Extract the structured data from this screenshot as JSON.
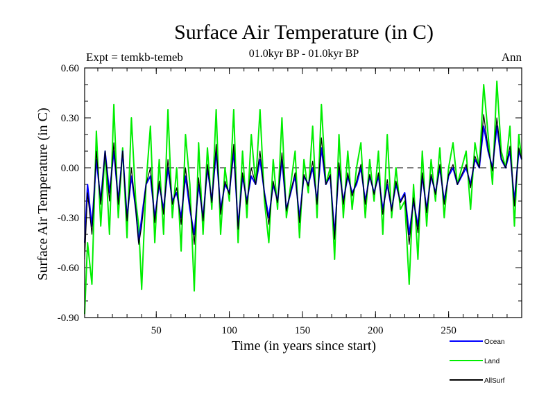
{
  "chart_data": {
    "type": "line",
    "title": "Surface Air Temperature (in C)",
    "subtitle": "01.0kyr BP - 01.0kyr BP",
    "left_annotation": "Expt = temkb-temeb",
    "right_annotation": "Ann",
    "xlabel": "Time (in years since start)",
    "ylabel": "Surface Air Temperature (in C)",
    "xlim": [
      1,
      300
    ],
    "ylim": [
      -0.9,
      0.6
    ],
    "x_ticks": [
      50,
      100,
      150,
      200,
      250
    ],
    "y_ticks": [
      0.6,
      0.3,
      0.0,
      -0.3,
      -0.6,
      -0.9
    ],
    "y_tick_labels": [
      "0.60",
      "0.30",
      "0.00",
      "-0.30",
      "-0.60",
      "-0.90"
    ],
    "reference_line": 0.0,
    "colors": {
      "ocean": "#0000ff",
      "land": "#00ee00",
      "allsurf": "#000000",
      "axis": "#000000"
    },
    "series": [
      {
        "name": "Land",
        "color": "#00ee00",
        "x": [
          1,
          3,
          6,
          9,
          12,
          15,
          18,
          21,
          24,
          27,
          30,
          33,
          36,
          38,
          40,
          43,
          46,
          49,
          52,
          55,
          58,
          61,
          64,
          67,
          70,
          73,
          76,
          79,
          82,
          85,
          88,
          91,
          94,
          97,
          100,
          103,
          106,
          109,
          112,
          115,
          118,
          121,
          124,
          127,
          130,
          133,
          136,
          139,
          142,
          145,
          148,
          151,
          154,
          157,
          160,
          163,
          166,
          169,
          172,
          175,
          178,
          181,
          184,
          187,
          190,
          193,
          196,
          199,
          202,
          205,
          208,
          211,
          214,
          217,
          220,
          223,
          226,
          229,
          232,
          235,
          238,
          241,
          244,
          247,
          250,
          253,
          256,
          259,
          262,
          265,
          268,
          271,
          274,
          277,
          280,
          283,
          286,
          289,
          292,
          295,
          298,
          300
        ],
        "values": [
          -0.88,
          -0.45,
          -0.7,
          0.22,
          -0.35,
          0.1,
          -0.4,
          0.38,
          -0.3,
          0.12,
          -0.42,
          0.3,
          -0.2,
          -0.35,
          -0.73,
          -0.1,
          0.25,
          -0.45,
          0.05,
          -0.4,
          0.35,
          -0.3,
          0.0,
          -0.5,
          0.2,
          -0.1,
          -0.74,
          0.15,
          -0.4,
          0.12,
          -0.25,
          0.35,
          -0.4,
          0.0,
          -0.2,
          0.35,
          -0.45,
          0.1,
          -0.3,
          0.2,
          -0.1,
          0.35,
          -0.2,
          -0.45,
          0.05,
          -0.25,
          0.3,
          -0.3,
          -0.1,
          0.1,
          -0.42,
          0.05,
          -0.15,
          0.25,
          -0.3,
          0.38,
          -0.1,
          0.0,
          -0.55,
          0.2,
          -0.3,
          0.1,
          -0.25,
          0.0,
          0.15,
          -0.3,
          0.05,
          -0.2,
          0.1,
          -0.4,
          0.2,
          -0.3,
          0.0,
          -0.25,
          -0.2,
          -0.7,
          -0.1,
          -0.55,
          0.1,
          -0.35,
          0.05,
          -0.2,
          0.12,
          -0.3,
          0.0,
          0.15,
          -0.1,
          0.0,
          0.1,
          -0.25,
          0.15,
          0.0,
          0.5,
          0.2,
          -0.1,
          0.52,
          0.1,
          0.0,
          0.25,
          -0.35,
          0.2,
          0.05
        ]
      },
      {
        "name": "Ocean",
        "color": "#0000ff",
        "x": [
          1,
          3,
          6,
          9,
          12,
          15,
          18,
          21,
          24,
          27,
          30,
          33,
          36,
          38,
          40,
          43,
          46,
          49,
          52,
          55,
          58,
          61,
          64,
          67,
          70,
          73,
          76,
          79,
          82,
          85,
          88,
          91,
          94,
          97,
          100,
          103,
          106,
          109,
          112,
          115,
          118,
          121,
          124,
          127,
          130,
          133,
          136,
          139,
          142,
          145,
          148,
          151,
          154,
          157,
          160,
          163,
          166,
          169,
          172,
          175,
          178,
          181,
          184,
          187,
          190,
          193,
          196,
          199,
          202,
          205,
          208,
          211,
          214,
          217,
          220,
          223,
          226,
          229,
          232,
          235,
          238,
          241,
          244,
          247,
          250,
          253,
          256,
          259,
          262,
          265,
          268,
          271,
          274,
          277,
          280,
          283,
          286,
          289,
          292,
          295,
          298,
          300
        ],
        "values": [
          -0.45,
          -0.1,
          -0.35,
          0.05,
          -0.2,
          0.1,
          -0.15,
          0.1,
          -0.2,
          0.1,
          -0.3,
          -0.05,
          -0.25,
          -0.45,
          -0.3,
          -0.1,
          -0.05,
          -0.3,
          -0.1,
          -0.25,
          0.0,
          -0.2,
          -0.15,
          -0.3,
          -0.05,
          -0.25,
          -0.4,
          -0.1,
          -0.3,
          0.0,
          -0.2,
          0.1,
          -0.25,
          -0.1,
          -0.15,
          0.1,
          -0.35,
          -0.05,
          -0.2,
          -0.05,
          -0.1,
          0.05,
          -0.15,
          -0.3,
          -0.1,
          -0.2,
          0.05,
          -0.25,
          -0.15,
          -0.05,
          -0.3,
          -0.05,
          -0.1,
          0.0,
          -0.2,
          0.12,
          -0.1,
          -0.05,
          -0.4,
          0.0,
          -0.2,
          -0.05,
          -0.15,
          -0.1,
          0.0,
          -0.2,
          -0.05,
          -0.15,
          -0.05,
          -0.25,
          -0.1,
          -0.25,
          -0.1,
          -0.2,
          -0.15,
          -0.4,
          -0.2,
          -0.35,
          -0.05,
          -0.25,
          -0.05,
          -0.15,
          0.0,
          -0.2,
          -0.05,
          0.0,
          -0.1,
          -0.05,
          0.0,
          -0.1,
          0.05,
          0.0,
          0.25,
          0.1,
          0.0,
          0.25,
          0.05,
          0.0,
          0.1,
          -0.2,
          0.1,
          0.05
        ]
      },
      {
        "name": "AllSurf",
        "color": "#000000",
        "x": [
          1,
          3,
          6,
          9,
          12,
          15,
          18,
          21,
          24,
          27,
          30,
          33,
          36,
          38,
          40,
          43,
          46,
          49,
          52,
          55,
          58,
          61,
          64,
          67,
          70,
          73,
          76,
          79,
          82,
          85,
          88,
          91,
          94,
          97,
          100,
          103,
          106,
          109,
          112,
          115,
          118,
          121,
          124,
          127,
          130,
          133,
          136,
          139,
          142,
          145,
          148,
          151,
          154,
          157,
          160,
          163,
          166,
          169,
          172,
          175,
          178,
          181,
          184,
          187,
          190,
          193,
          196,
          199,
          202,
          205,
          208,
          211,
          214,
          217,
          220,
          223,
          226,
          229,
          232,
          235,
          238,
          241,
          244,
          247,
          250,
          253,
          256,
          259,
          262,
          265,
          268,
          271,
          274,
          277,
          280,
          283,
          286,
          289,
          292,
          295,
          298,
          300
        ],
        "values": [
          -0.55,
          -0.15,
          -0.4,
          0.1,
          -0.22,
          0.1,
          -0.2,
          0.15,
          -0.22,
          0.1,
          -0.32,
          0.0,
          -0.25,
          -0.46,
          -0.35,
          -0.1,
          0.0,
          -0.33,
          -0.08,
          -0.28,
          0.05,
          -0.22,
          -0.12,
          -0.34,
          0.0,
          -0.22,
          -0.46,
          -0.06,
          -0.32,
          0.02,
          -0.21,
          0.14,
          -0.28,
          -0.08,
          -0.16,
          0.14,
          -0.37,
          -0.03,
          -0.22,
          0.0,
          -0.1,
          0.1,
          -0.16,
          -0.34,
          -0.08,
          -0.21,
          0.09,
          -0.26,
          -0.14,
          -0.03,
          -0.33,
          -0.04,
          -0.11,
          0.04,
          -0.22,
          0.18,
          -0.1,
          -0.04,
          -0.43,
          0.03,
          -0.22,
          -0.03,
          -0.17,
          -0.08,
          0.02,
          -0.22,
          -0.04,
          -0.16,
          -0.03,
          -0.28,
          -0.07,
          -0.26,
          -0.08,
          -0.21,
          -0.16,
          -0.46,
          -0.18,
          -0.39,
          -0.03,
          -0.27,
          -0.04,
          -0.16,
          0.02,
          -0.22,
          -0.04,
          0.02,
          -0.1,
          -0.04,
          0.02,
          -0.12,
          0.07,
          0.0,
          0.32,
          0.12,
          -0.02,
          0.3,
          0.06,
          0.0,
          0.13,
          -0.23,
          0.12,
          0.05
        ]
      }
    ],
    "legend": [
      {
        "name": "Ocean",
        "color": "#0000ff"
      },
      {
        "name": "Land",
        "color": "#00ee00"
      },
      {
        "name": "AllSurf",
        "color": "#000000"
      }
    ]
  }
}
